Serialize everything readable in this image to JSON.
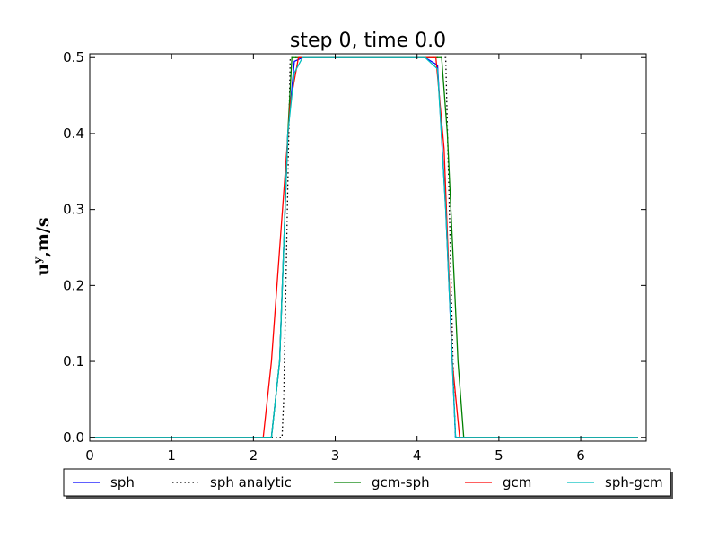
{
  "chart_data": {
    "type": "line",
    "title": "step 0, time 0.0",
    "xlabel": "",
    "ylabel": {
      "base": "u",
      "superscript": "y",
      "rest": ",m/s"
    },
    "xlim": [
      0,
      6.8
    ],
    "ylim": [
      -0.005,
      0.505
    ],
    "xticks": [
      0,
      1,
      2,
      3,
      4,
      5,
      6
    ],
    "yticks": [
      0.0,
      0.1,
      0.2,
      0.3,
      0.4,
      0.5
    ],
    "xtick_labels": [
      "0",
      "1",
      "2",
      "3",
      "4",
      "5",
      "6"
    ],
    "ytick_labels": [
      "0.0",
      "0.1",
      "0.2",
      "0.3",
      "0.4",
      "0.5"
    ],
    "grid": false,
    "legend_position": "below-plot",
    "series": [
      {
        "name": "sph",
        "color": "#0000ff",
        "style": "solid",
        "x": [
          0,
          2.22,
          2.32,
          2.42,
          2.5,
          2.6,
          4.1,
          4.25,
          4.35,
          4.47,
          4.5,
          6.7
        ],
        "y": [
          0,
          0,
          0.1,
          0.4,
          0.495,
          0.5,
          0.5,
          0.49,
          0.3,
          0.0,
          0,
          0
        ]
      },
      {
        "name": "sph analytic",
        "color": "#000000",
        "style": "dotted",
        "x": [
          0,
          2.35,
          2.35,
          2.37,
          2.45,
          4.35,
          4.45,
          4.47,
          4.47,
          6.7
        ],
        "y": [
          0,
          0,
          0.0,
          0.05,
          0.5,
          0.5,
          0.05,
          0.0,
          0,
          0
        ]
      },
      {
        "name": "gcm-sph",
        "color": "#008000",
        "style": "solid",
        "x": [
          0,
          2.22,
          2.32,
          2.42,
          2.47,
          4.3,
          4.37,
          4.5,
          4.57,
          6.7
        ],
        "y": [
          0,
          0,
          0.1,
          0.4,
          0.5,
          0.5,
          0.4,
          0.1,
          0,
          0
        ]
      },
      {
        "name": "gcm",
        "color": "#ff0000",
        "style": "solid",
        "x": [
          0,
          2.12,
          2.22,
          2.45,
          2.55,
          4.23,
          4.33,
          4.43,
          4.52,
          6.7
        ],
        "y": [
          0,
          0,
          0.1,
          0.44,
          0.5,
          0.5,
          0.38,
          0.1,
          0,
          0
        ]
      },
      {
        "name": "sph-gcm",
        "color": "#00bfbf",
        "style": "solid",
        "x": [
          0,
          2.22,
          2.32,
          2.42,
          2.5,
          2.6,
          4.1,
          4.25,
          4.35,
          4.47,
          4.5,
          6.7
        ],
        "y": [
          0,
          0,
          0.1,
          0.4,
          0.48,
          0.5,
          0.5,
          0.485,
          0.3,
          0.0,
          0,
          0
        ]
      }
    ]
  }
}
